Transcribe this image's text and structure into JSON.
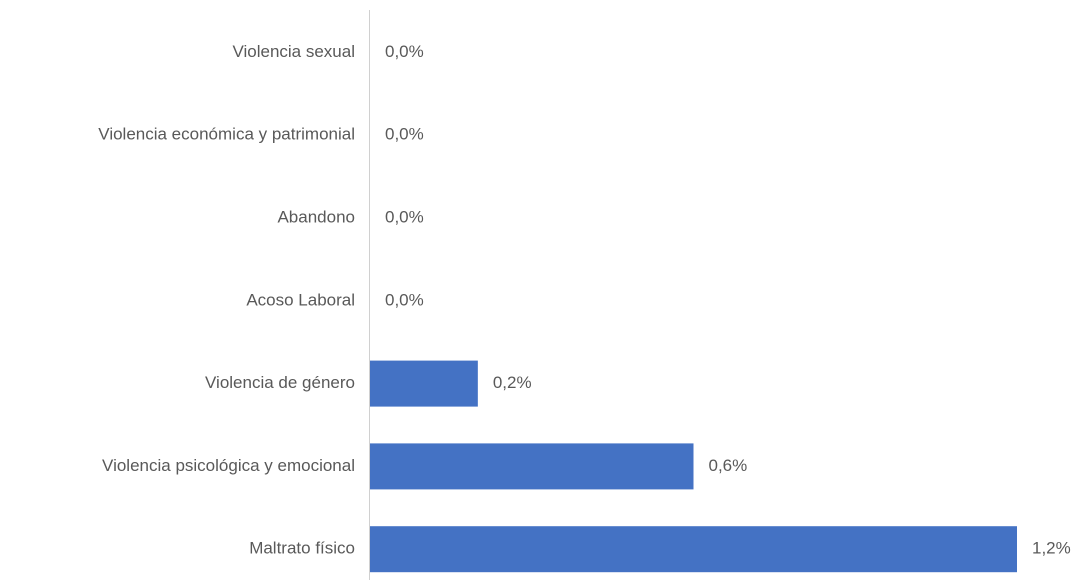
{
  "chart_data": {
    "type": "bar",
    "orientation": "horizontal",
    "categories": [
      "Violencia sexual",
      "Violencia económica y patrimonial",
      "Abandono",
      "Acoso Laboral",
      "Violencia de género",
      "Violencia psicológica y emocional",
      "Maltrato físico"
    ],
    "values": [
      0,
      0,
      0,
      0,
      0.2,
      0.6,
      1.2
    ],
    "value_labels": [
      "0,0%",
      "0,0%",
      "0,0%",
      "0,0%",
      "0,2%",
      "0,6%",
      "1,2%"
    ],
    "color": "#4472c4"
  }
}
